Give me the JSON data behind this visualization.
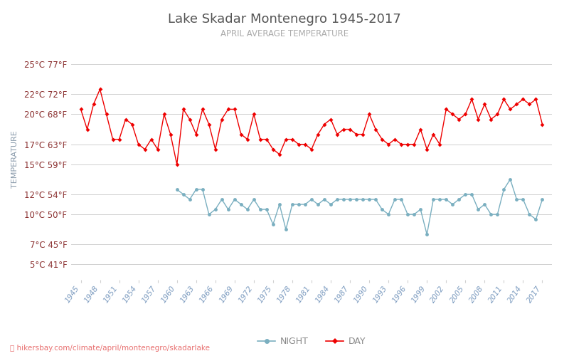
{
  "title": "Lake Skadar Montenegro 1945-2017",
  "subtitle": "APRIL AVERAGE TEMPERATURE",
  "ylabel": "TEMPERATURE",
  "footer": "hikersbay.com/climate/april/montenegro/skadarlake",
  "bg_color": "#ffffff",
  "grid_color": "#d0d0d0",
  "years": [
    1945,
    1946,
    1947,
    1948,
    1949,
    1950,
    1951,
    1952,
    1953,
    1954,
    1955,
    1956,
    1957,
    1958,
    1959,
    1960,
    1961,
    1962,
    1963,
    1964,
    1965,
    1966,
    1967,
    1968,
    1969,
    1970,
    1971,
    1972,
    1973,
    1974,
    1975,
    1976,
    1977,
    1978,
    1979,
    1980,
    1981,
    1982,
    1983,
    1984,
    1985,
    1986,
    1987,
    1988,
    1989,
    1990,
    1991,
    1992,
    1993,
    1994,
    1995,
    1996,
    1997,
    1998,
    1999,
    2000,
    2001,
    2002,
    2003,
    2004,
    2005,
    2006,
    2007,
    2008,
    2009,
    2010,
    2011,
    2012,
    2013,
    2014,
    2015,
    2016,
    2017
  ],
  "day_temps": [
    20.5,
    18.5,
    21.0,
    22.5,
    20.0,
    17.5,
    17.5,
    19.5,
    19.0,
    17.0,
    16.5,
    17.5,
    16.5,
    20.0,
    18.0,
    15.0,
    20.5,
    19.5,
    18.0,
    20.5,
    19.0,
    16.5,
    19.5,
    20.5,
    20.5,
    18.0,
    17.5,
    20.0,
    17.5,
    17.5,
    16.5,
    16.0,
    17.5,
    17.5,
    17.0,
    17.0,
    16.5,
    18.0,
    19.0,
    19.5,
    18.0,
    18.5,
    18.5,
    18.0,
    18.0,
    20.0,
    18.5,
    17.5,
    17.0,
    17.5,
    17.0,
    17.0,
    17.0,
    18.5,
    16.5,
    18.0,
    17.0,
    20.5,
    20.0,
    19.5,
    20.0,
    21.5,
    19.5,
    21.0,
    19.5,
    20.0,
    21.5,
    20.5,
    21.0,
    21.5,
    21.0,
    21.5,
    19.0
  ],
  "night_temps": [
    null,
    null,
    null,
    null,
    null,
    null,
    null,
    null,
    null,
    null,
    null,
    null,
    null,
    null,
    null,
    12.5,
    12.0,
    11.5,
    12.5,
    12.5,
    10.0,
    10.5,
    11.5,
    10.5,
    11.5,
    11.0,
    10.5,
    11.5,
    10.5,
    10.5,
    9.0,
    11.0,
    8.5,
    11.0,
    11.0,
    11.0,
    11.5,
    11.0,
    11.5,
    11.0,
    11.5,
    11.5,
    11.5,
    11.5,
    11.5,
    11.5,
    11.5,
    10.5,
    10.0,
    11.5,
    11.5,
    10.0,
    10.0,
    10.5,
    8.0,
    11.5,
    11.5,
    11.5,
    11.0,
    11.5,
    12.0,
    12.0,
    10.5,
    11.0,
    10.0,
    10.0,
    12.5,
    13.5,
    11.5,
    11.5,
    10.0,
    9.5,
    11.5
  ],
  "day_color": "#ee0000",
  "night_color": "#7aafc0",
  "yticks_c": [
    5,
    7,
    10,
    12,
    15,
    17,
    20,
    22,
    25
  ],
  "yticks_f": [
    41,
    45,
    50,
    54,
    59,
    63,
    68,
    72,
    77
  ],
  "ymin": 3.5,
  "ymax": 27.5,
  "xtick_years": [
    1945,
    1948,
    1951,
    1954,
    1957,
    1960,
    1963,
    1966,
    1969,
    1972,
    1975,
    1978,
    1981,
    1984,
    1987,
    1990,
    1993,
    1996,
    1999,
    2002,
    2005,
    2008,
    2011,
    2014,
    2017
  ]
}
